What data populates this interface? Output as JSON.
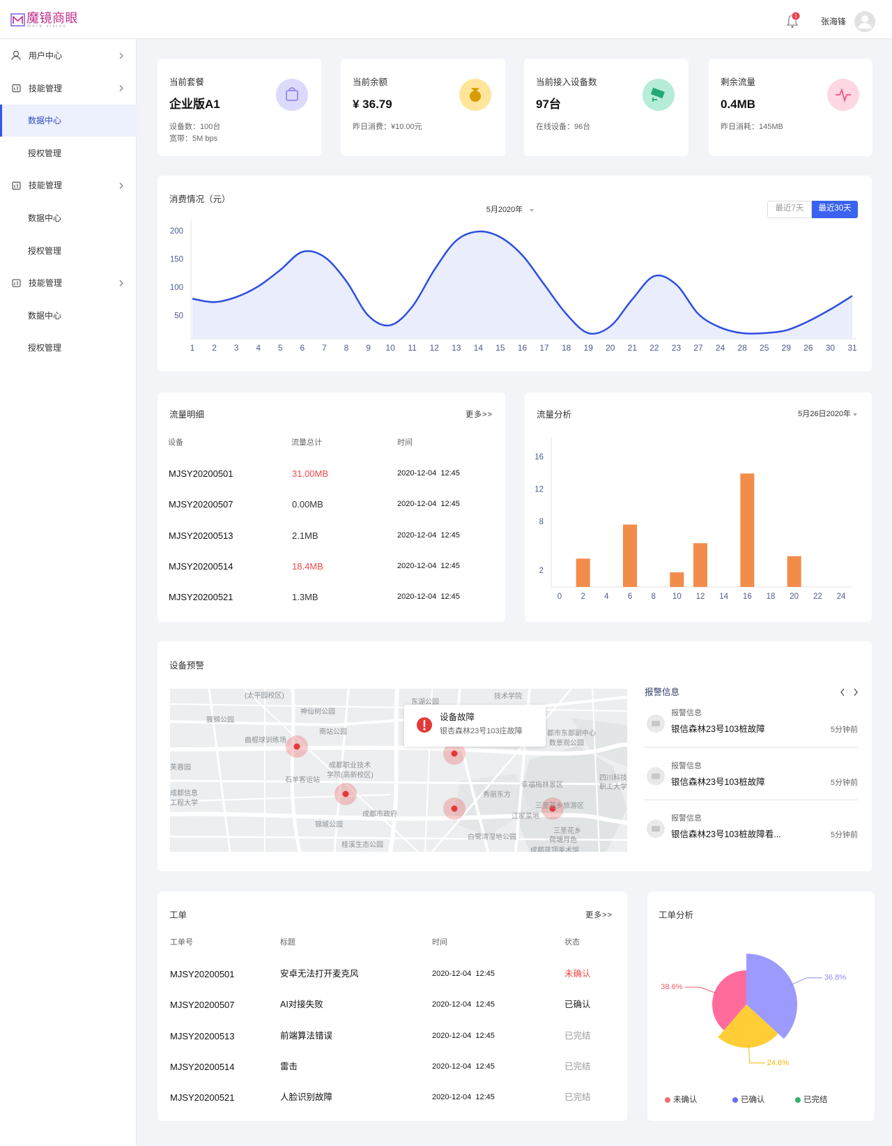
{
  "header": {
    "logo": "魔镜商眼",
    "logo_sub": "more vision",
    "notifications": 1,
    "user": "张海锋"
  },
  "menu": [
    {
      "label": "用户中心",
      "children": []
    },
    {
      "label": "技能管理",
      "children": [
        "数据中心",
        "授权管理"
      ]
    },
    {
      "label": "技能管理",
      "children": [
        "数据中心",
        "授权管理"
      ]
    },
    {
      "label": "技能管理",
      "children": [
        "数据中心",
        "授权管理"
      ]
    }
  ],
  "menu_active": [
    1,
    0
  ],
  "stats": [
    {
      "title": "当前套餐",
      "value": "企业版A1",
      "details": [
        "设备数：100台",
        "宽带：5M bps"
      ],
      "icon_bg": "#dcdafb",
      "icon_color": "#8f86f0"
    },
    {
      "title": "当前余额",
      "value": "¥ 36.79",
      "details": [
        "昨日消费：¥10.00元"
      ],
      "icon_bg": "#ffe69a",
      "icon_color": "#d99b00"
    },
    {
      "title": "当前接入设备数",
      "value": "97台",
      "details": [
        "在线设备：96台"
      ],
      "icon_bg": "#b6ecd8",
      "icon_color": "#22a874"
    },
    {
      "title": "剩余流量",
      "value": "0.4MB",
      "details": [
        "昨日消耗：145MB"
      ],
      "icon_bg": "#fdd7e2",
      "icon_color": "#f2578a"
    }
  ],
  "chart_data": [
    {
      "type": "line",
      "title": "消费情况（元）",
      "period": "5月2020年",
      "ranges": [
        "最近7天",
        "最近30天"
      ],
      "active_range": 1,
      "categories": [
        "1",
        "2",
        "3",
        "4",
        "5",
        "6",
        "7",
        "8",
        "9",
        "10",
        "11",
        "12",
        "13",
        "14",
        "15",
        "16",
        "17",
        "18",
        "19",
        "20",
        "21",
        "22",
        "23",
        "27",
        "24",
        "28",
        "25",
        "29",
        "26",
        "30",
        "31"
      ],
      "values": [
        81,
        75,
        84,
        103,
        132,
        164,
        155,
        112,
        51,
        34,
        67,
        132,
        184,
        200,
        190,
        158,
        106,
        54,
        20,
        32,
        80,
        121,
        106,
        54,
        30,
        20,
        20,
        25,
        41,
        62,
        86
      ],
      "color": "#2d4de0",
      "area_color": "#e9edfc",
      "smooth": true,
      "ylim": [
        10,
        215
      ],
      "yticks": [
        50,
        100,
        150,
        200
      ],
      "grid": false
    },
    {
      "type": "bar",
      "title": "流量分析",
      "period": "5月26日2020年",
      "x": [
        2,
        6,
        10,
        12,
        16,
        20
      ],
      "values": [
        3.5,
        7.7,
        1.8,
        5.4,
        14,
        3.8
      ],
      "color": "#f28c4b",
      "xlim": [
        0,
        24
      ],
      "xticks": [
        0,
        2,
        4,
        6,
        8,
        10,
        12,
        14,
        16,
        18,
        20,
        22,
        24
      ],
      "ylim": [
        0,
        18.5
      ],
      "yticks": [
        2,
        8,
        12,
        16
      ],
      "grid": false
    },
    {
      "type": "pie",
      "title": "工单分析",
      "categories": [
        "未确认",
        "已确认",
        "已完结"
      ],
      "values": [
        38.6,
        36.8,
        24.6
      ],
      "value_labels": [
        "38.6%",
        "36.8%",
        "24.6%"
      ],
      "colors": [
        "#ff6b9b",
        "#9d9afd",
        "#ffcd36"
      ],
      "label_colors": [
        "#f25b6b",
        "#8c8cf5",
        "#f2b400"
      ],
      "legend_colors": [
        "#f56c6c",
        "#6b6cf0",
        "#2db36b"
      ],
      "legend": "bottom"
    }
  ],
  "traffic_detail": {
    "title": "流量明细",
    "more": "更多>>",
    "columns": [
      "设备",
      "流量总计",
      "时间"
    ],
    "rows": [
      [
        "MJSY20200501",
        "31.00MB",
        "2020-12-04  12:45"
      ],
      [
        "MJSY20200507",
        "0.00MB",
        "2020-12-04  12:45"
      ],
      [
        "MJSY20200513",
        "2.1MB",
        "2020-12-04  12:45"
      ],
      [
        "MJSY20200514",
        "18.4MB",
        "2020-12-04  12:45"
      ],
      [
        "MJSY20200521",
        "1.3MB",
        "2020-12-04  12:45"
      ]
    ],
    "highlight_rows": [
      0,
      3
    ],
    "highlight_color": "#f04a4a"
  },
  "device_alert": {
    "title": "设备预警",
    "map_places": [
      "(太平园校区)",
      "神仙树公园",
      "簇锦公园",
      "南站公园",
      "曲棍球训练场",
      "石羊客运站",
      "成都职业技术",
      "学院(高新校区)",
      "芙蓉园",
      "成都信息",
      "工程大学",
      "锦城公园",
      "成都市政府",
      "桂溪生态公园",
      "东湖公园",
      "技术学院",
      "都市东部副中心",
      "数景观公园",
      "幸福梅林景区",
      "秀丽东方",
      "江家菜地",
      "三圣花乡旅游区",
      "白鹭湾湿地公园",
      "三圣花乡",
      "荷塘月色",
      "成都蓝顶美术馆",
      "四川科技",
      "职工大学"
    ],
    "tooltip": {
      "title": "设备故障",
      "text": "银杏森林23号103庄故障"
    },
    "alarms": {
      "title": "报警信息",
      "items": [
        {
          "label": "报警信息",
          "text": "银信森林23号103桩故障",
          "time": "5分钟前"
        },
        {
          "label": "报警信息",
          "text": "银信森林23号103桩故障",
          "time": "5分钟前"
        },
        {
          "label": "报警信息",
          "text": "银信森林23号103桩故障看...",
          "time": "5分钟前"
        }
      ]
    }
  },
  "work_orders": {
    "title": "工单",
    "more": "更多>>",
    "columns": [
      "工单号",
      "标题",
      "时间",
      "状态"
    ],
    "rows": [
      [
        "MJSY20200501",
        "安卓无法打开麦克风",
        "2020-12-04  12:45",
        "未确认"
      ],
      [
        "MJSY20200507",
        "AI对接失败",
        "2020-12-04  12:45",
        "已确认"
      ],
      [
        "MJSY20200513",
        "前端算法错误",
        "2020-12-04  12:45",
        "已完结"
      ],
      [
        "MJSY20200514",
        "雷击",
        "2020-12-04  12:45",
        "已完结"
      ],
      [
        "MJSY20200521",
        "人脸识别故障",
        "2020-12-04  12:45",
        "已完结"
      ]
    ],
    "status_colors": {
      "未确认": "#f04a4a",
      "已确认": "#222222",
      "已完结": "#999999"
    }
  }
}
